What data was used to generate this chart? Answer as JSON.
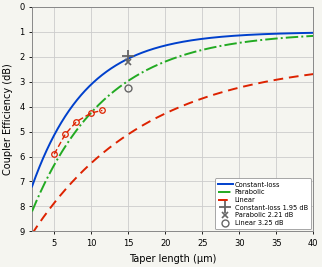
{
  "xlabel": "Taper length (μm)",
  "ylabel": "Coupler Efficiency (dB)",
  "xlim": [
    2,
    40
  ],
  "ylim": [
    -9,
    0
  ],
  "xticks": [
    5,
    10,
    15,
    20,
    25,
    30,
    35,
    40
  ],
  "yticks": [
    0,
    -1,
    -2,
    -3,
    -4,
    -5,
    -6,
    -7,
    -8,
    -9
  ],
  "ytick_labels": [
    "0",
    "1",
    "2",
    "3",
    "4",
    "5",
    "6",
    "7",
    "8",
    "9"
  ],
  "constant_loss_color": "#0040cc",
  "parabolic_color": "#22aa22",
  "linear_color": "#dd2200",
  "measured_gray_color": "#666666",
  "bg_color": "#f5f5f0",
  "grid_color": "#cccccc",
  "measured_constant_loss": [
    15,
    -1.95
  ],
  "measured_parabolic": [
    15,
    -2.21
  ],
  "measured_linear": [
    15,
    -3.25
  ],
  "linear_measured_x": [
    5.0,
    6.5,
    8.0,
    10.0,
    11.5
  ],
  "linear_measured_y": [
    -5.9,
    -5.1,
    -4.6,
    -4.25,
    -4.15
  ]
}
